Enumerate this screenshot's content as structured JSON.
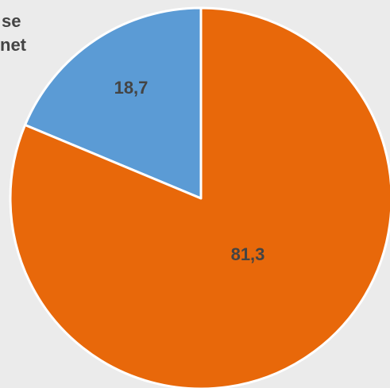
{
  "chart_data": {
    "type": "pie",
    "slices": [
      {
        "label": "18,7",
        "value": 18.7,
        "color": "#5b9bd5"
      },
      {
        "label": "81,3",
        "value": 81.3,
        "color": "#e8680a"
      }
    ],
    "start_angle_deg": 0,
    "direction": "counterclockwise",
    "legend_fragments": [
      "se",
      "net"
    ],
    "legend_placement": "top-left (cropped)",
    "slice_border_color": "#ffffff"
  }
}
